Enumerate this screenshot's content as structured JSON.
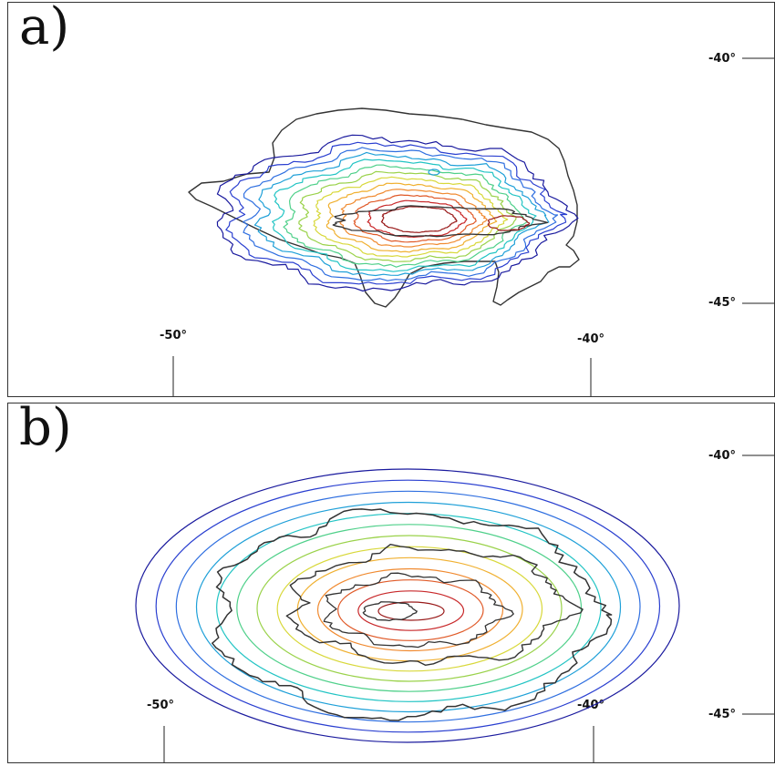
{
  "panels": [
    {
      "id": "a",
      "label": "a)",
      "lat_labels": [
        "-40°",
        "-45°"
      ],
      "lon_labels": [
        "-50°",
        "-40°"
      ]
    },
    {
      "id": "b",
      "label": "b)",
      "lat_labels": [
        "-40°",
        "-45°"
      ],
      "lon_labels": [
        "-50°",
        "-40°"
      ]
    }
  ],
  "contour_colors": [
    "#1a1a9e",
    "#2a3fd0",
    "#2f6fe0",
    "#1fa0d8",
    "#22c4c4",
    "#4fd08a",
    "#9ad24a",
    "#d8d83a",
    "#f0b030",
    "#f08a30",
    "#e05a28",
    "#c8282a",
    "#991a1a"
  ],
  "outline_color": "#333333"
}
